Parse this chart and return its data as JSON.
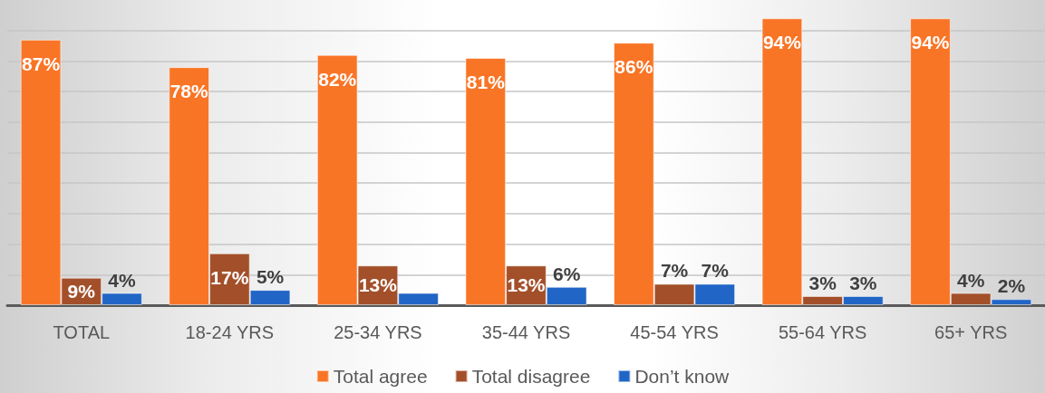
{
  "chart_data": {
    "type": "bar",
    "categories": [
      "TOTAL",
      "18-24 YRS",
      "25-34 YRS",
      "35-44 YRS",
      "45-54 YRS",
      "55-64 YRS",
      "65+ YRS"
    ],
    "series": [
      {
        "name": "Total agree",
        "color": "#f97526",
        "values": [
          87,
          78,
          82,
          81,
          86,
          94,
          94
        ],
        "value_labels": [
          "87%",
          "78%",
          "82%",
          "81%",
          "86%",
          "94%",
          "94%"
        ]
      },
      {
        "name": "Total disagree",
        "color": "#a3502a",
        "values": [
          9,
          17,
          13,
          13,
          7,
          3,
          4
        ],
        "value_labels": [
          "9%",
          "17%",
          "13%",
          "13%",
          "7%",
          "3%",
          "4%"
        ]
      },
      {
        "name": "Don’t know",
        "color": "#2166c6",
        "values": [
          4,
          5,
          4,
          6,
          7,
          3,
          2
        ],
        "value_labels": [
          "4%",
          "5%",
          null,
          "6%",
          "7%",
          "3%",
          "2%"
        ]
      }
    ],
    "yticks": [
      {
        "value": 0,
        "label": null
      },
      {
        "value": 10,
        "label": null
      },
      {
        "value": 20,
        "label": null
      },
      {
        "value": 30,
        "label": null
      },
      {
        "value": 40,
        "label": null
      },
      {
        "value": 50,
        "label": null
      },
      {
        "value": 60,
        "label": null
      },
      {
        "value": 70,
        "label": null
      },
      {
        "value": 80,
        "label": null
      },
      {
        "value": 90,
        "label": null
      }
    ],
    "grid": "y",
    "legend": "bottom",
    "tick_labels": "x"
  }
}
